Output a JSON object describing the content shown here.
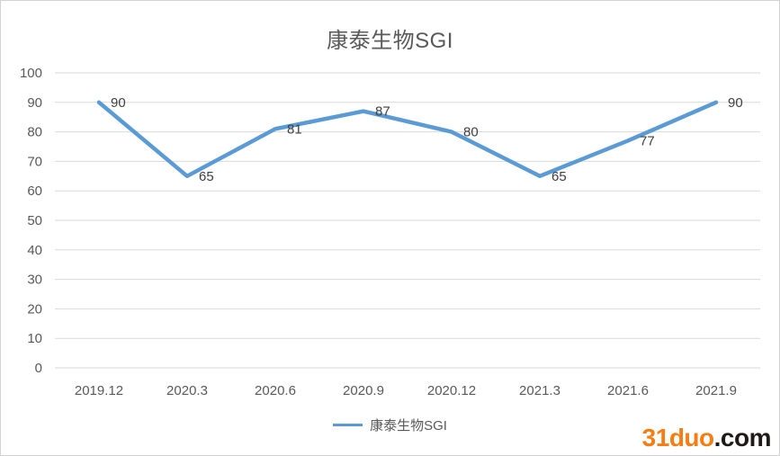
{
  "chart_data": {
    "type": "line",
    "title": "康泰生物SGI",
    "categories": [
      "2019.12",
      "2020.3",
      "2020.6",
      "2020.9",
      "2020.12",
      "2021.3",
      "2021.6",
      "2021.9"
    ],
    "series": [
      {
        "name": "康泰生物SGI",
        "values": [
          90,
          65,
          81,
          87,
          80,
          65,
          77,
          90
        ]
      }
    ],
    "ylim": [
      0,
      100
    ],
    "ytick_step": 10,
    "grid": true,
    "legend_position": "bottom",
    "colors": {
      "line": "#5B9BD5",
      "gridline": "#D9D9D9",
      "axis_text": "#595959",
      "data_label": "#404040",
      "title": "#595959"
    }
  },
  "watermark": {
    "brand": "31duo",
    "tld": ".com"
  }
}
